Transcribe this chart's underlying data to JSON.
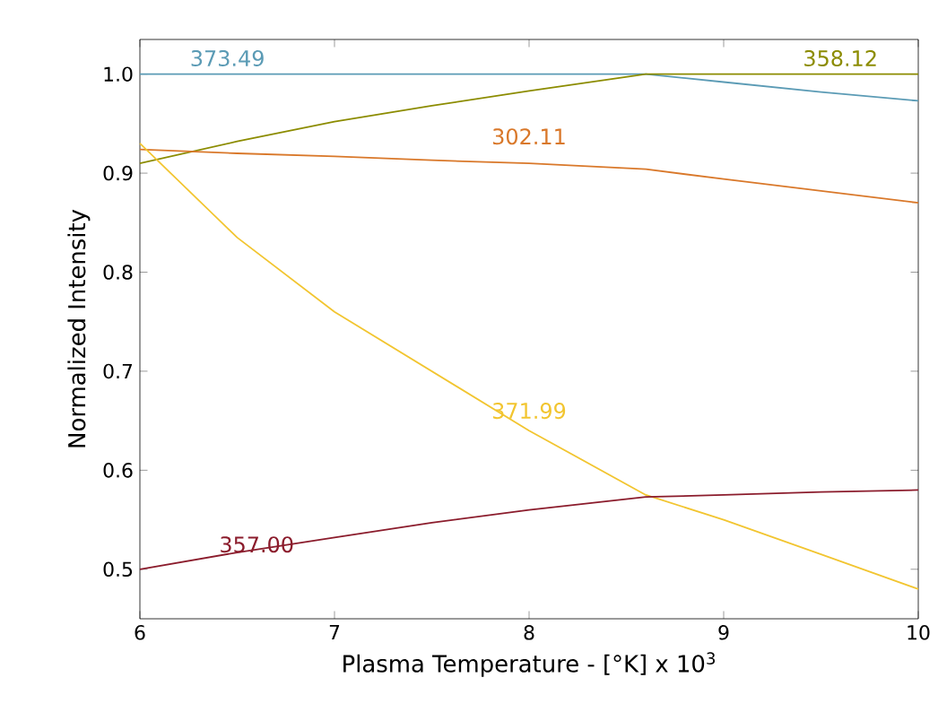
{
  "chart_data": {
    "type": "line",
    "xlabel": "Plasma Temperature - [°K] x 10$^{3}$",
    "ylabel": "Normalized Intensity",
    "xlim": [
      6,
      10
    ],
    "ylim": [
      0.45,
      1.035
    ],
    "xticks": [
      6,
      7,
      8,
      9,
      10
    ],
    "yticks": [
      {
        "value": 0.5,
        "label": "0.5"
      },
      {
        "value": 0.6,
        "label": "0.6"
      },
      {
        "value": 0.7,
        "label": "0.7"
      },
      {
        "value": 0.8,
        "label": "0.8"
      },
      {
        "value": 0.9,
        "label": "0.9"
      },
      {
        "value": 1.0,
        "label": "1.0"
      }
    ],
    "grid": false,
    "legend": false,
    "marker": "none",
    "line_style": "solid",
    "x": [
      6,
      6.5,
      7,
      7.5,
      8,
      8.6,
      9,
      9.5,
      10
    ],
    "series": [
      {
        "name": "373.49",
        "color": "#5b9bb5",
        "values": [
          1,
          1,
          1,
          1,
          1,
          1,
          0.992,
          0.982,
          0.973
        ]
      },
      {
        "name": "358.12",
        "color": "#8c8c00",
        "values": [
          0.91,
          0.932,
          0.952,
          0.968,
          0.983,
          1,
          1,
          1,
          1
        ]
      },
      {
        "name": "302.11",
        "color": "#d9782a",
        "values": [
          0.924,
          0.92,
          0.917,
          0.913,
          0.91,
          0.904,
          0.894,
          0.882,
          0.87
        ]
      },
      {
        "name": "371.99",
        "color": "#f2c530",
        "values": [
          0.93,
          0.835,
          0.76,
          0.7,
          0.64,
          0.575,
          0.55,
          0.515,
          0.48
        ]
      },
      {
        "name": "357.00",
        "color": "#8b1c2c",
        "values": [
          0.5,
          0.517,
          0.532,
          0.547,
          0.56,
          0.573,
          0.575,
          0.578,
          0.58
        ]
      }
    ]
  }
}
